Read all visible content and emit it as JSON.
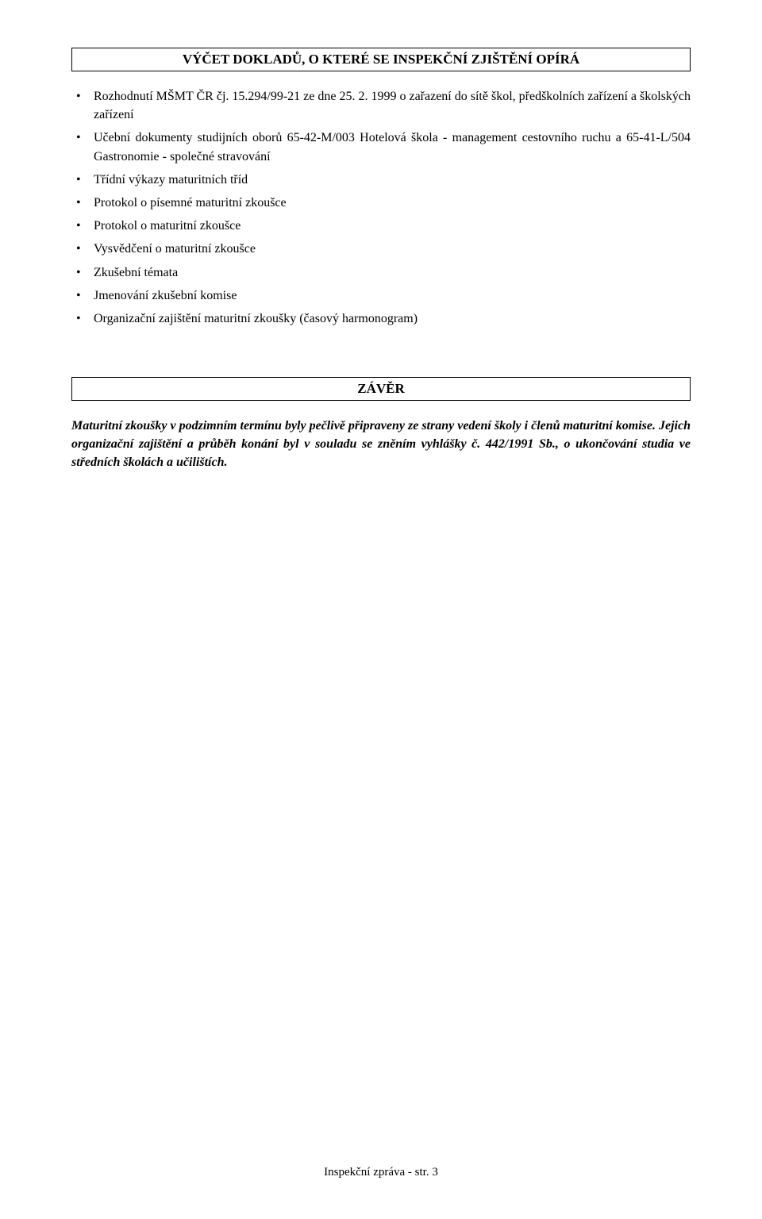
{
  "section1": {
    "title": "VÝČET DOKLADŮ, O KTERÉ SE INSPEKČNÍ ZJIŠTĚNÍ OPÍRÁ",
    "items": [
      "Rozhodnutí MŠMT ČR čj. 15.294/99-21 ze dne 25. 2. 1999 o zařazení do sítě škol, předškolních zařízení a školských zařízení",
      "Učební dokumenty studijních oborů 65-42-M/003 Hotelová škola - management cestovního ruchu a 65-41-L/504 Gastronomie - společné stravování",
      "Třídní výkazy maturitních tříd",
      "Protokol o písemné maturitní zkoušce",
      "Protokol o maturitní zkoušce",
      "Vysvědčení o maturitní zkoušce",
      "Zkušební témata",
      "Jmenování zkušební komise",
      "Organizační zajištění maturitní zkoušky (časový harmonogram)"
    ]
  },
  "zaver": {
    "title": "ZÁVĚR",
    "text": "Maturitní zkoušky v podzimním termínu byly pečlivě připraveny ze strany vedení školy i členů maturitní komise. Jejich organizační zajištění a průběh konání byl v souladu se zněním vyhlášky č. 442/1991 Sb., o ukončování studia ve středních školách a učilištích."
  },
  "footer": "Inspekční zpráva - str. 3"
}
